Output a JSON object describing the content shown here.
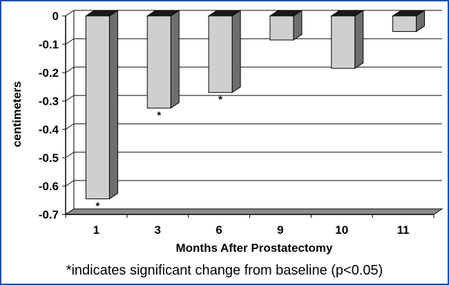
{
  "chart_data": {
    "type": "bar",
    "categories": [
      "1",
      "3",
      "6",
      "9",
      "10",
      "11"
    ],
    "values": [
      -0.645,
      -0.325,
      -0.27,
      -0.085,
      -0.185,
      -0.055
    ],
    "significant": [
      true,
      true,
      true,
      false,
      false,
      false
    ],
    "significance_marker": "*",
    "xlabel": "Months After Prostatectomy",
    "ylabel": "centimeters",
    "ylim": [
      -0.7,
      0
    ],
    "yticks": [
      "0",
      "-0.1",
      "-0.2",
      "-0.3",
      "-0.4",
      "-0.5",
      "-0.6",
      "-0.7"
    ],
    "grid": true,
    "colors": {
      "bar": "#cfcfcf",
      "bar_side": "#6e6e6e",
      "bar_top": "#1a1a1a",
      "floor": "#8a8a8a",
      "frame": "#1f4fa8"
    }
  },
  "footnote": "*indicates significant change from baseline (p<0.05)"
}
